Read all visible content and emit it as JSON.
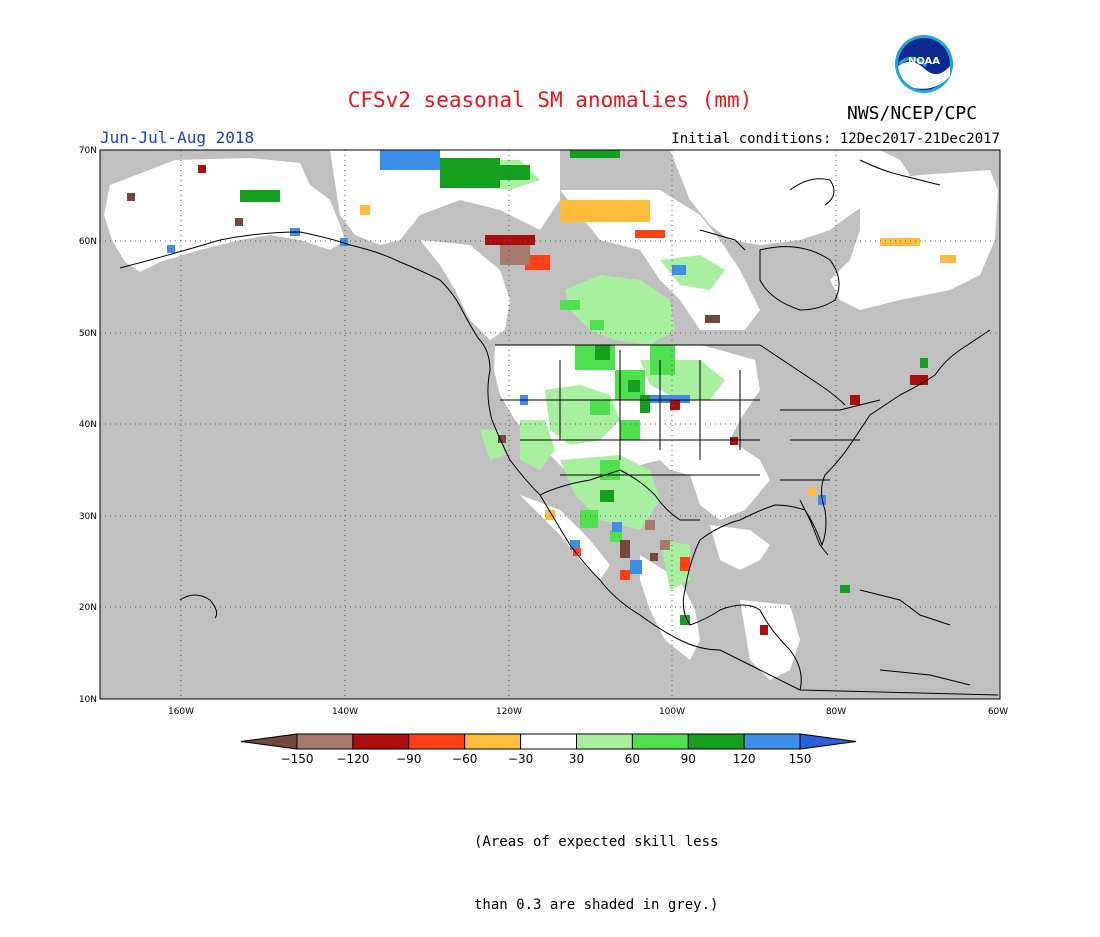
{
  "title": "CFSv2 seasonal SM anomalies (mm)",
  "agency": "NWS/NCEP/CPC",
  "logo_text": "NOAA",
  "period": "Jun-Jul-Aug 2018",
  "initial_conditions": "Initial conditions: 12Dec2017-21Dec2017",
  "note_lines": [
    "(Areas of expected skill less",
    "than 0.3 are shaded in grey.)"
  ],
  "lat_labels": [
    "70N",
    "60N",
    "50N",
    "40N",
    "30N",
    "20N",
    "10N"
  ],
  "lon_labels": [
    "160W",
    "140W",
    "120W",
    "100W",
    "80W",
    "60W"
  ],
  "colorbar": {
    "labels": [
      "-150",
      "-120",
      "-90",
      "-60",
      "-30",
      "30",
      "60",
      "90",
      "120",
      "150"
    ],
    "colors": [
      "#73483c",
      "#a67a6a",
      "#a90d0d",
      "#ff4016",
      "#ffbc3d",
      "#ffffff",
      "#a8f0a0",
      "#4fe04f",
      "#14a01e",
      "#3d8ee8",
      "#2a60e0"
    ]
  },
  "colors": {
    "land_low_skill": "#c0c0c0",
    "ocean": "#c0c0c0",
    "neutral": "#ffffff",
    "title": "#e8141b",
    "period": "#1a3bd6"
  }
}
